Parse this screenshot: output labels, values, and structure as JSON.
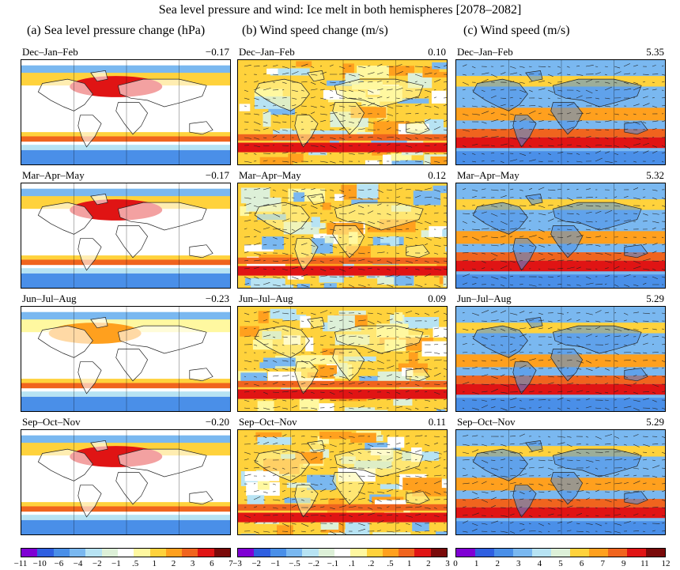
{
  "title": "Sea level pressure and wind: Ice melt in both hemispheres [2078–2082]",
  "columns": [
    {
      "key": "a",
      "title": "(a) Sea level pressure change (hPa)"
    },
    {
      "key": "b",
      "title": "(b) Wind speed change (m/s)"
    },
    {
      "key": "c",
      "title": "(c) Wind speed (m/s)"
    }
  ],
  "seasons": [
    "Dec–Jan–Feb",
    "Mar–Apr–May",
    "Jun–Jul–Aug",
    "Sep–Oct–Nov"
  ],
  "chart_data": [
    {
      "type": "heatmap",
      "title": "(a) Sea level pressure change (hPa)",
      "rows": [
        "Dec–Jan–Feb",
        "Mar–Apr–May",
        "Jun–Jul–Aug",
        "Sep–Oct–Nov"
      ],
      "global_means": [
        "−0.17",
        "−0.17",
        "−0.23",
        "−0.20"
      ],
      "colorbar_ticks": [
        "−11",
        "−10",
        "−6",
        "−4",
        "−2",
        "−1",
        ".5",
        "1",
        "2",
        "3",
        "6",
        "7"
      ],
      "colors": [
        "#7f00d4",
        "#2f5fe0",
        "#4a8fe8",
        "#7ab8f0",
        "#b7e3f3",
        "#ddf0d8",
        "#ffffff",
        "#fff8a0",
        "#ffd23c",
        "#ffa01e",
        "#f0641e",
        "#e01414",
        "#7a0a0a"
      ]
    },
    {
      "type": "heatmap",
      "title": "(b) Wind speed change (m/s)",
      "rows": [
        "Dec–Jan–Feb",
        "Mar–Apr–May",
        "Jun–Jul–Aug",
        "Sep–Oct–Nov"
      ],
      "global_means": [
        "0.10",
        "0.12",
        "0.09",
        "0.11"
      ],
      "colorbar_ticks": [
        "−3",
        "−2",
        "−1",
        "−.5",
        "−.2",
        "−.1",
        ".1",
        ".2",
        ".5",
        "1",
        "2",
        "3"
      ],
      "colors": [
        "#7f00d4",
        "#2f5fe0",
        "#4a8fe8",
        "#7ab8f0",
        "#b7e3f3",
        "#ddf0d8",
        "#ffffff",
        "#fff8a0",
        "#ffd23c",
        "#ffa01e",
        "#f0641e",
        "#e01414",
        "#7a0a0a"
      ]
    },
    {
      "type": "heatmap",
      "title": "(c) Wind speed (m/s)",
      "rows": [
        "Dec–Jan–Feb",
        "Mar–Apr–May",
        "Jun–Jul–Aug",
        "Sep–Oct–Nov"
      ],
      "global_means": [
        "5.35",
        "5.32",
        "5.29",
        "5.29"
      ],
      "colorbar_ticks": [
        "0",
        "1",
        "2",
        "3",
        "4",
        "5",
        "6",
        "7",
        "9",
        "11",
        "12"
      ],
      "colors": [
        "#7f00d4",
        "#2f5fe0",
        "#4a8fe8",
        "#7ab8f0",
        "#b7e3f3",
        "#ddf0d8",
        "#ffd23c",
        "#ffa01e",
        "#f0641e",
        "#e01414",
        "#7a0a0a"
      ]
    }
  ]
}
